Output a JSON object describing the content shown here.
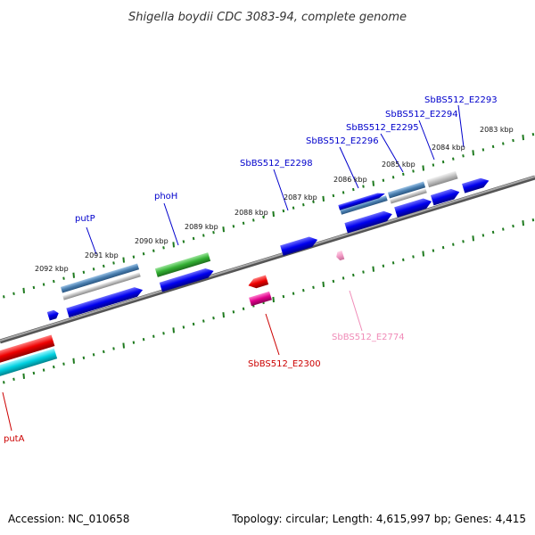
{
  "title": "Shigella boydii CDC 3083-94, complete genome",
  "footer": {
    "accession": "Accession: NC_010658",
    "summary": "Topology: circular; Length: 4,615,997 bp; Genes: 4,415"
  },
  "ticks": [
    "2092 kbp",
    "2091 kbp",
    "2090 kbp",
    "2089 kbp",
    "2088 kbp",
    "2087 kbp",
    "2086 kbp",
    "2085 kbp",
    "2084 kbp",
    "2083 kbp"
  ],
  "labels": {
    "putP": "putP",
    "phoH": "phoH",
    "e2298": "SbBS512_E2298",
    "e2296": "SbBS512_E2296",
    "e2295": "SbBS512_E2295",
    "e2294": "SbBS512_E2294",
    "e2293": "SbBS512_E2293",
    "e2774": "SbBS512_E2774",
    "e2300": "SbBS512_E2300",
    "putA": "putA"
  },
  "colors": {
    "backbone": "#7a7a7a",
    "tick": "#1e7a1e",
    "gene_blue": "#0000e6",
    "gene_green": "#3ab03a",
    "gene_red": "#ee0000",
    "gene_magenta": "#e6008a",
    "gene_cyan": "#00c8d8",
    "gene_steel": "#4a7fb0",
    "gene_grey": "#b5b5b5",
    "gene_pink": "#f09ac4",
    "label_blue": "#0000cc",
    "label_red": "#cc0000",
    "label_pink": "#f08cb8"
  }
}
